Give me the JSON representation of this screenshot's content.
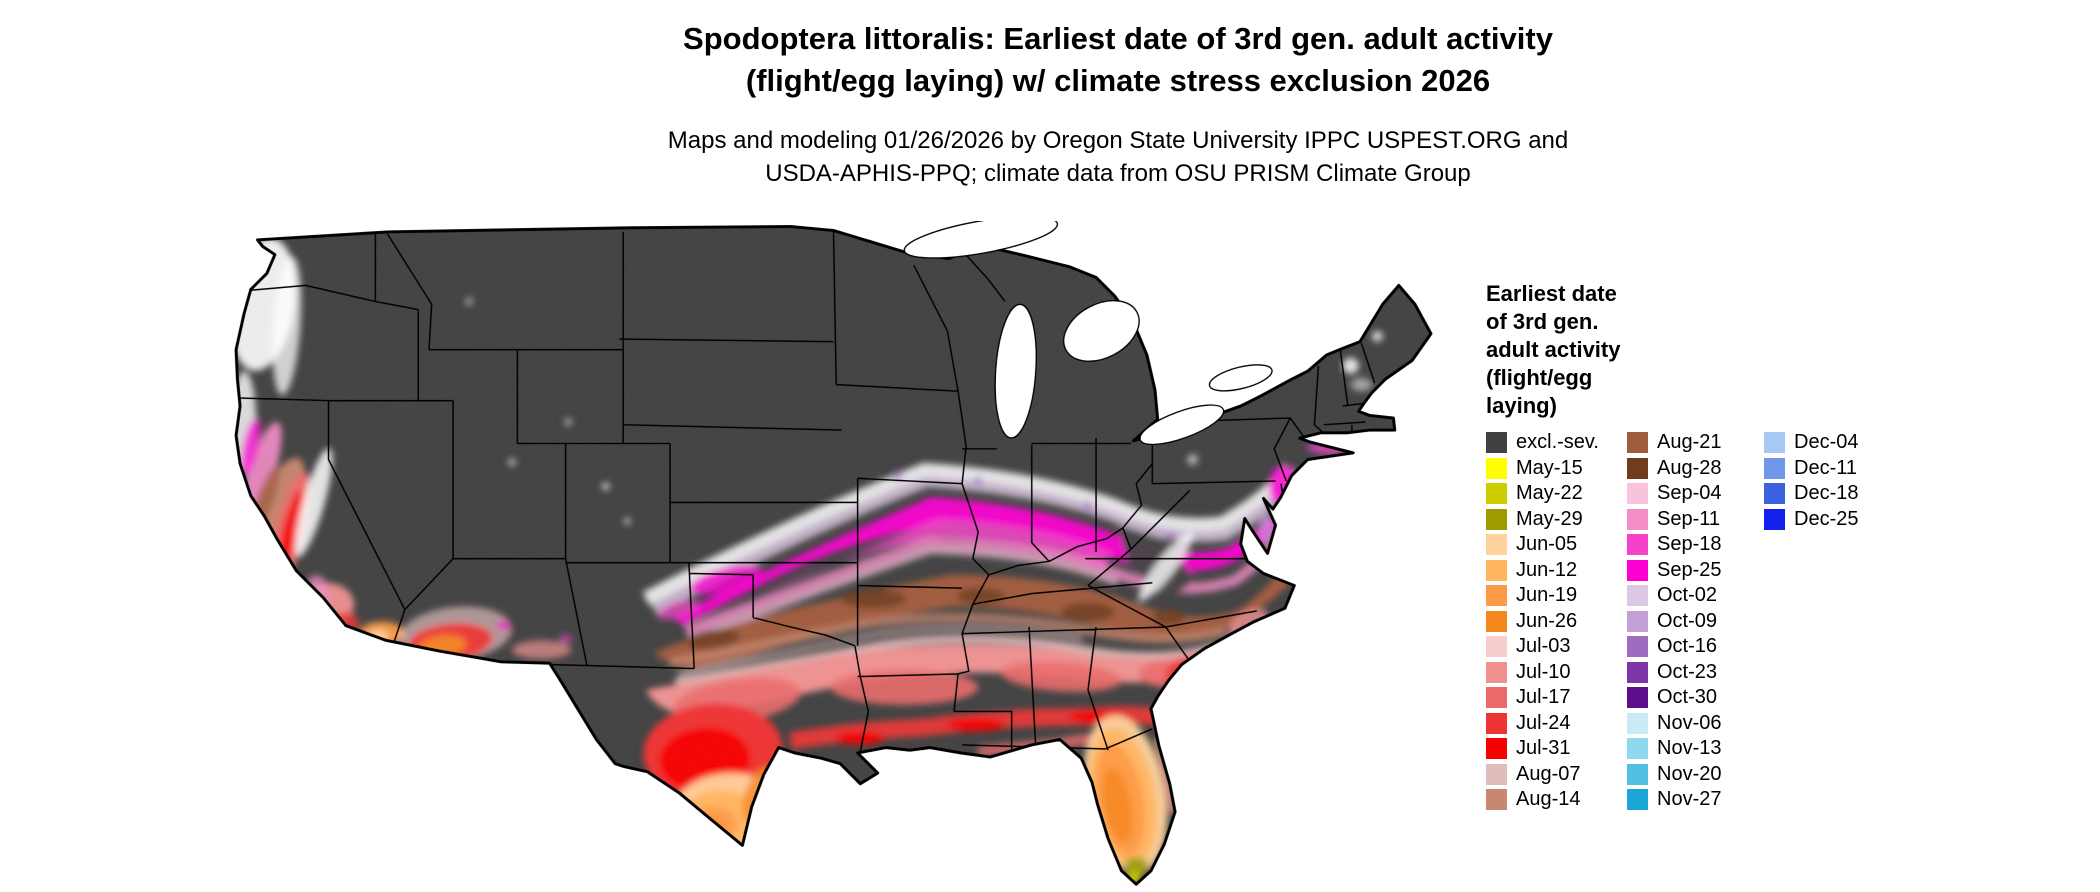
{
  "title": {
    "line1": "Spodoptera littoralis: Earliest date of 3rd gen. adult activity",
    "line2": "(flight/egg laying) w/ climate stress exclusion 2026"
  },
  "subtitle": {
    "line1": "Maps and modeling 01/26/2026 by Oregon State University IPPC USPEST.ORG and",
    "line2": "USDA-APHIS-PPQ; climate data from OSU PRISM Climate Group"
  },
  "map": {
    "outline_color": "#000000",
    "state_border_color": "#000000",
    "no_data_color": "#ffffff",
    "excluded_label": "excl.-sev."
  },
  "legend": {
    "title_lines": [
      "Earliest date",
      "of 3rd gen.",
      "adult activity",
      "(flight/egg",
      "laying)"
    ],
    "columns": [
      [
        {
          "label": "excl.-sev.",
          "color": "#404040"
        },
        {
          "label": "May-15",
          "color": "#ffff00"
        },
        {
          "label": "May-22",
          "color": "#cdcd00"
        },
        {
          "label": "May-29",
          "color": "#9c9c00"
        },
        {
          "label": "Jun-05",
          "color": "#ffd39b"
        },
        {
          "label": "Jun-12",
          "color": "#ffb45e"
        },
        {
          "label": "Jun-19",
          "color": "#fd9a44"
        },
        {
          "label": "Jun-26",
          "color": "#f5871f"
        },
        {
          "label": "Jul-03",
          "color": "#f7cdcd"
        },
        {
          "label": "Jul-10",
          "color": "#ee9090"
        },
        {
          "label": "Jul-17",
          "color": "#ea6a6a"
        },
        {
          "label": "Jul-24",
          "color": "#ee3333"
        },
        {
          "label": "Jul-31",
          "color": "#f40000"
        },
        {
          "label": "Aug-07",
          "color": "#dfbdbd"
        },
        {
          "label": "Aug-14",
          "color": "#c8876f"
        }
      ],
      [
        {
          "label": "Aug-21",
          "color": "#a05a3c"
        },
        {
          "label": "Aug-28",
          "color": "#703c1e"
        },
        {
          "label": "Sep-04",
          "color": "#f8c3dc"
        },
        {
          "label": "Sep-11",
          "color": "#f48cc7"
        },
        {
          "label": "Sep-18",
          "color": "#f542c8"
        },
        {
          "label": "Sep-25",
          "color": "#fb00d0"
        },
        {
          "label": "Oct-02",
          "color": "#dcc8e4"
        },
        {
          "label": "Oct-09",
          "color": "#c3a0d6"
        },
        {
          "label": "Oct-16",
          "color": "#a06cc0"
        },
        {
          "label": "Oct-23",
          "color": "#7d35a8"
        },
        {
          "label": "Oct-30",
          "color": "#5c0d8a"
        },
        {
          "label": "Nov-06",
          "color": "#c8ecf6"
        },
        {
          "label": "Nov-13",
          "color": "#8fd8ee"
        },
        {
          "label": "Nov-20",
          "color": "#52c0e4"
        },
        {
          "label": "Nov-27",
          "color": "#1ba6d8"
        }
      ],
      [
        {
          "label": "Dec-04",
          "color": "#a6c8f2"
        },
        {
          "label": "Dec-11",
          "color": "#6f97ea"
        },
        {
          "label": "Dec-18",
          "color": "#3b63e0"
        },
        {
          "label": "Dec-25",
          "color": "#1420ee"
        }
      ]
    ]
  }
}
